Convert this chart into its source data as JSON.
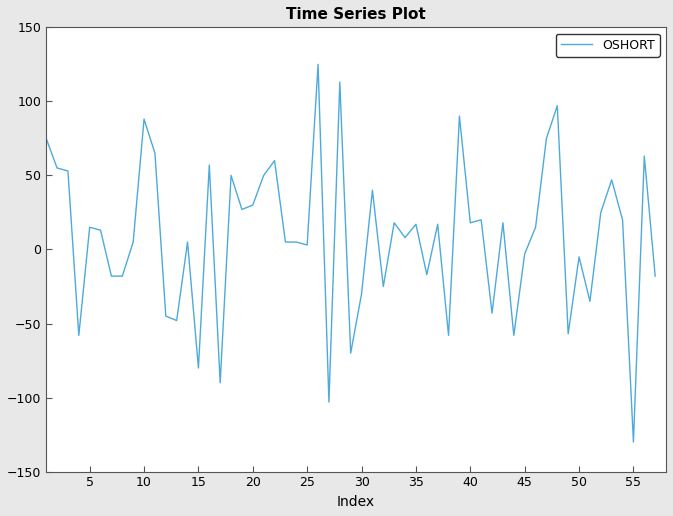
{
  "title": "Time Series Plot",
  "xlabel": "Index",
  "ylabel": "",
  "legend_label": "OSHORT",
  "line_color": "#4DAADB",
  "xlim": [
    1,
    58
  ],
  "ylim": [
    -150,
    150
  ],
  "xticks": [
    5,
    10,
    15,
    20,
    25,
    30,
    35,
    40,
    45,
    50,
    55
  ],
  "yticks": [
    -150,
    -100,
    -50,
    0,
    50,
    100,
    150
  ],
  "background_color": "#e8e8e8",
  "plot_background": "#ffffff",
  "y_values": [
    75,
    55,
    53,
    -58,
    15,
    13,
    -18,
    -18,
    5,
    88,
    65,
    -45,
    -48,
    5,
    -80,
    57,
    -90,
    50,
    27,
    30,
    50,
    60,
    5,
    5,
    3,
    125,
    -103,
    113,
    -70,
    -30,
    40,
    -25,
    18,
    8,
    17,
    -17,
    17,
    -58,
    90,
    18,
    20,
    -43,
    18,
    -58,
    -3,
    15,
    75,
    97,
    -57,
    -5,
    -35,
    25,
    47,
    20,
    -130,
    63,
    -18
  ]
}
